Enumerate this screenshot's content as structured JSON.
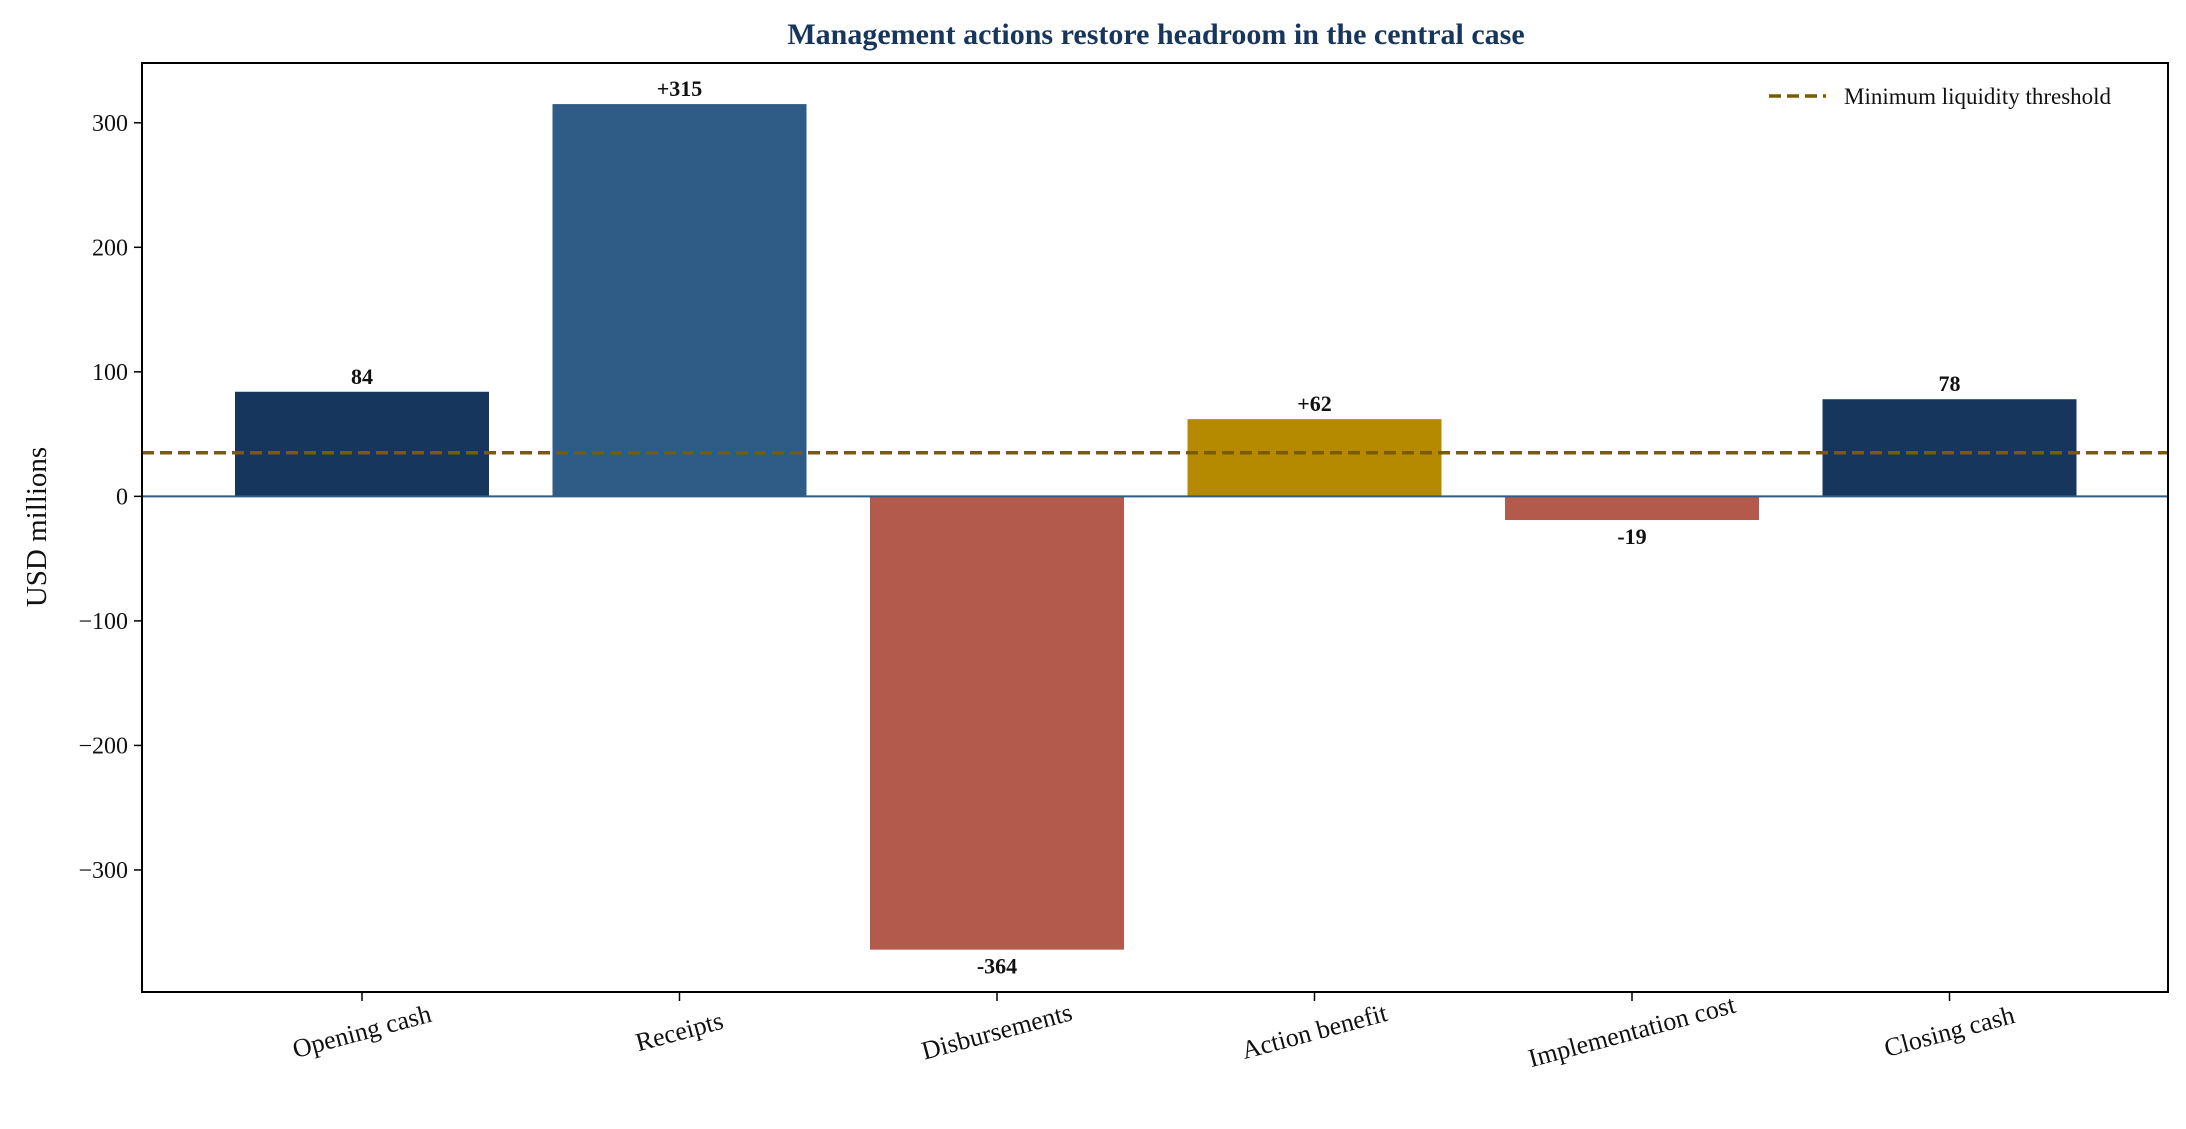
{
  "chart_data": {
    "type": "bar",
    "title": "Management actions restore headroom in the central case",
    "xlabel": "",
    "ylabel": "USD millions",
    "categories": [
      "Opening cash",
      "Receipts",
      "Disbursements",
      "Action benefit",
      "Implementation cost",
      "Closing cash"
    ],
    "values": [
      84,
      315,
      -364,
      62,
      -19,
      78
    ],
    "value_labels": [
      "84",
      "+315",
      "-364",
      "+62",
      "-19",
      "78"
    ],
    "bar_colors": [
      "#17365d",
      "#2e5c87",
      "#b35a4c",
      "#b58900",
      "#b35a4c",
      "#17365d"
    ],
    "ylim": [
      -398,
      348
    ],
    "yticks": [
      -300,
      -200,
      -100,
      0,
      100,
      200,
      300
    ],
    "ytick_labels": [
      "−300",
      "−200",
      "−100",
      "0",
      "100",
      "200",
      "300"
    ],
    "threshold": {
      "name": "Minimum liquidity threshold",
      "value": 35,
      "color": "#7a5c00",
      "style": "dashed"
    },
    "zero_line_color": "#2e5c87",
    "title_color": "#17365d",
    "legend_position": "top-right",
    "grid": false
  }
}
